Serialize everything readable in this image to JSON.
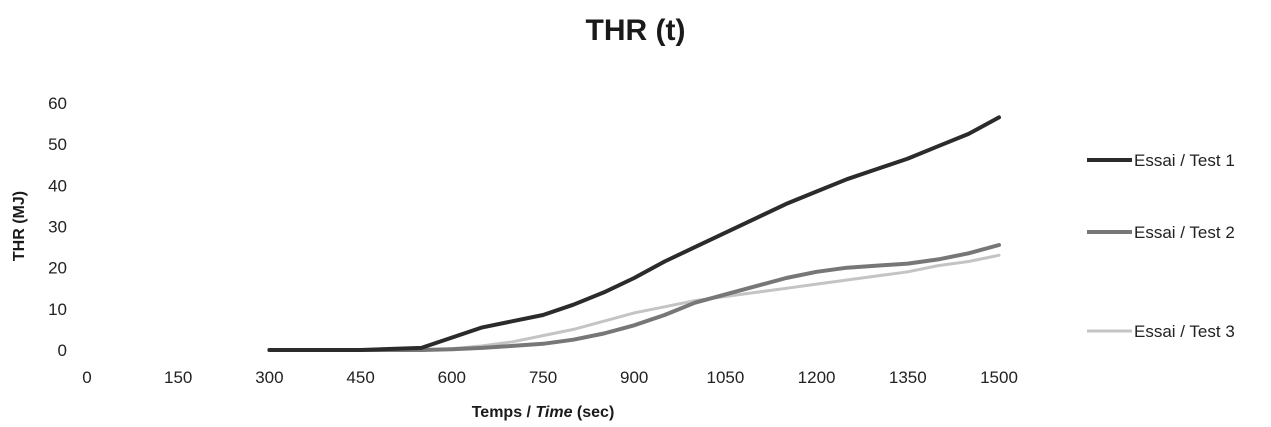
{
  "chart_data": {
    "type": "line",
    "title": "THR (t)",
    "xlabel_main": "Temps / ",
    "xlabel_italic": "Time",
    "xlabel_unit": " (sec)",
    "ylabel": "THR (MJ)",
    "xlim": [
      0,
      1500
    ],
    "ylim": [
      0,
      60
    ],
    "xticks": [
      "0",
      "150",
      "300",
      "450",
      "600",
      "750",
      "900",
      "1050",
      "1200",
      "1350",
      "1500"
    ],
    "yticks": [
      "0",
      "10",
      "20",
      "30",
      "40",
      "50",
      "60"
    ],
    "grid": false,
    "legend_position": "right",
    "series": [
      {
        "name": "Essai / Test 1",
        "color": "#2b2b2b",
        "x": [
          300,
          450,
          550,
          600,
          650,
          700,
          750,
          800,
          850,
          900,
          950,
          1000,
          1050,
          1100,
          1150,
          1200,
          1250,
          1300,
          1350,
          1400,
          1450,
          1500
        ],
        "y": [
          0,
          0,
          0.5,
          3,
          5.5,
          7,
          8.5,
          11,
          14,
          17.5,
          21.5,
          25,
          28.5,
          32,
          35.5,
          38.5,
          41.5,
          44,
          46.5,
          49.5,
          52.5,
          56.5
        ]
      },
      {
        "name": "Essai / Test 2",
        "color": "#777777",
        "x": [
          300,
          450,
          550,
          600,
          650,
          700,
          750,
          800,
          850,
          900,
          950,
          1000,
          1050,
          1100,
          1150,
          1200,
          1250,
          1300,
          1350,
          1400,
          1450,
          1500
        ],
        "y": [
          0,
          0,
          0,
          0.2,
          0.5,
          1,
          1.5,
          2.5,
          4,
          6,
          8.5,
          11.5,
          13.5,
          15.5,
          17.5,
          19,
          20,
          20.5,
          21,
          22,
          23.5,
          25.5
        ]
      },
      {
        "name": "Essai / Test 3",
        "color": "#c4c4c4",
        "x": [
          300,
          450,
          550,
          600,
          650,
          700,
          750,
          800,
          850,
          900,
          950,
          1000,
          1050,
          1100,
          1150,
          1200,
          1250,
          1300,
          1350,
          1400,
          1450,
          1500
        ],
        "y": [
          0,
          0,
          0,
          0.3,
          1,
          2,
          3.5,
          5,
          7,
          9,
          10.5,
          12,
          13,
          14,
          15,
          16,
          17,
          18,
          19,
          20.5,
          21.5,
          23
        ]
      }
    ]
  }
}
